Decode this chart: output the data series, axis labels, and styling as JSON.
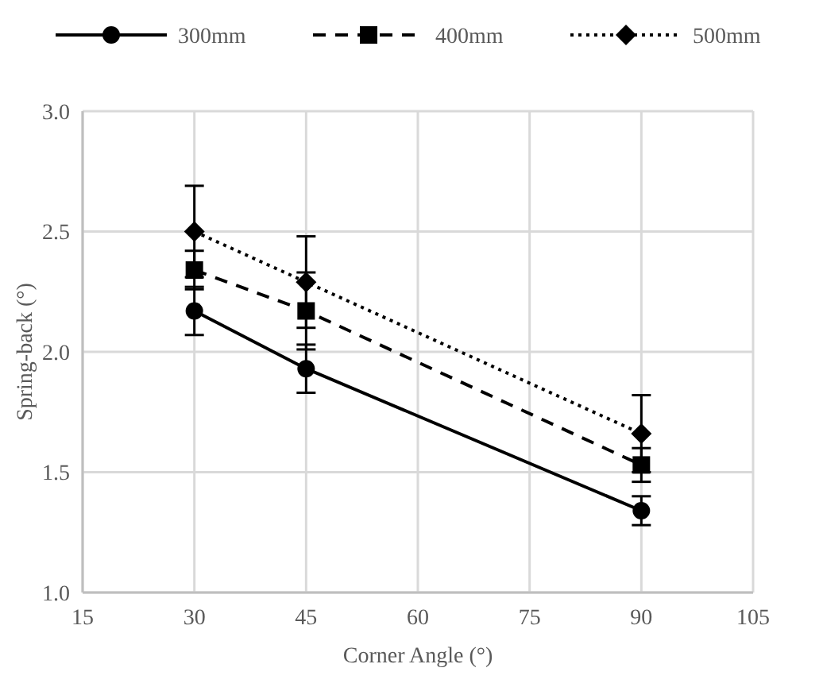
{
  "chart_data": {
    "type": "line",
    "xlabel": "Corner Angle (°)",
    "ylabel": "Spring-back (°)",
    "x": [
      30,
      45,
      90
    ],
    "xlim": [
      15,
      105
    ],
    "xticks": [
      15,
      30,
      45,
      60,
      75,
      90,
      105
    ],
    "ylim": [
      1.0,
      3.0
    ],
    "yticks": [
      {
        "value": 1.0,
        "label": "1.0"
      },
      {
        "value": 1.5,
        "label": "1.5"
      },
      {
        "value": 2.0,
        "label": "2.0"
      },
      {
        "value": 2.5,
        "label": "2.5"
      },
      {
        "value": 3.0,
        "label": "3.0"
      }
    ],
    "grid": true,
    "legend": "top",
    "series": [
      {
        "name": "300mm",
        "color": "#000000",
        "marker": "circle",
        "line_style": "solid",
        "values": [
          2.17,
          1.93,
          1.34
        ],
        "errors": [
          0.1,
          0.1,
          0.06
        ]
      },
      {
        "name": "400mm",
        "color": "#000000",
        "marker": "square",
        "line_style": "dashed",
        "values": [
          2.34,
          2.17,
          1.53
        ],
        "errors": [
          0.08,
          0.16,
          0.07
        ]
      },
      {
        "name": "500mm",
        "color": "#000000",
        "marker": "diamond",
        "line_style": "dotted",
        "values": [
          2.5,
          2.29,
          1.66
        ],
        "errors": [
          0.19,
          0.19,
          0.16
        ]
      }
    ]
  }
}
